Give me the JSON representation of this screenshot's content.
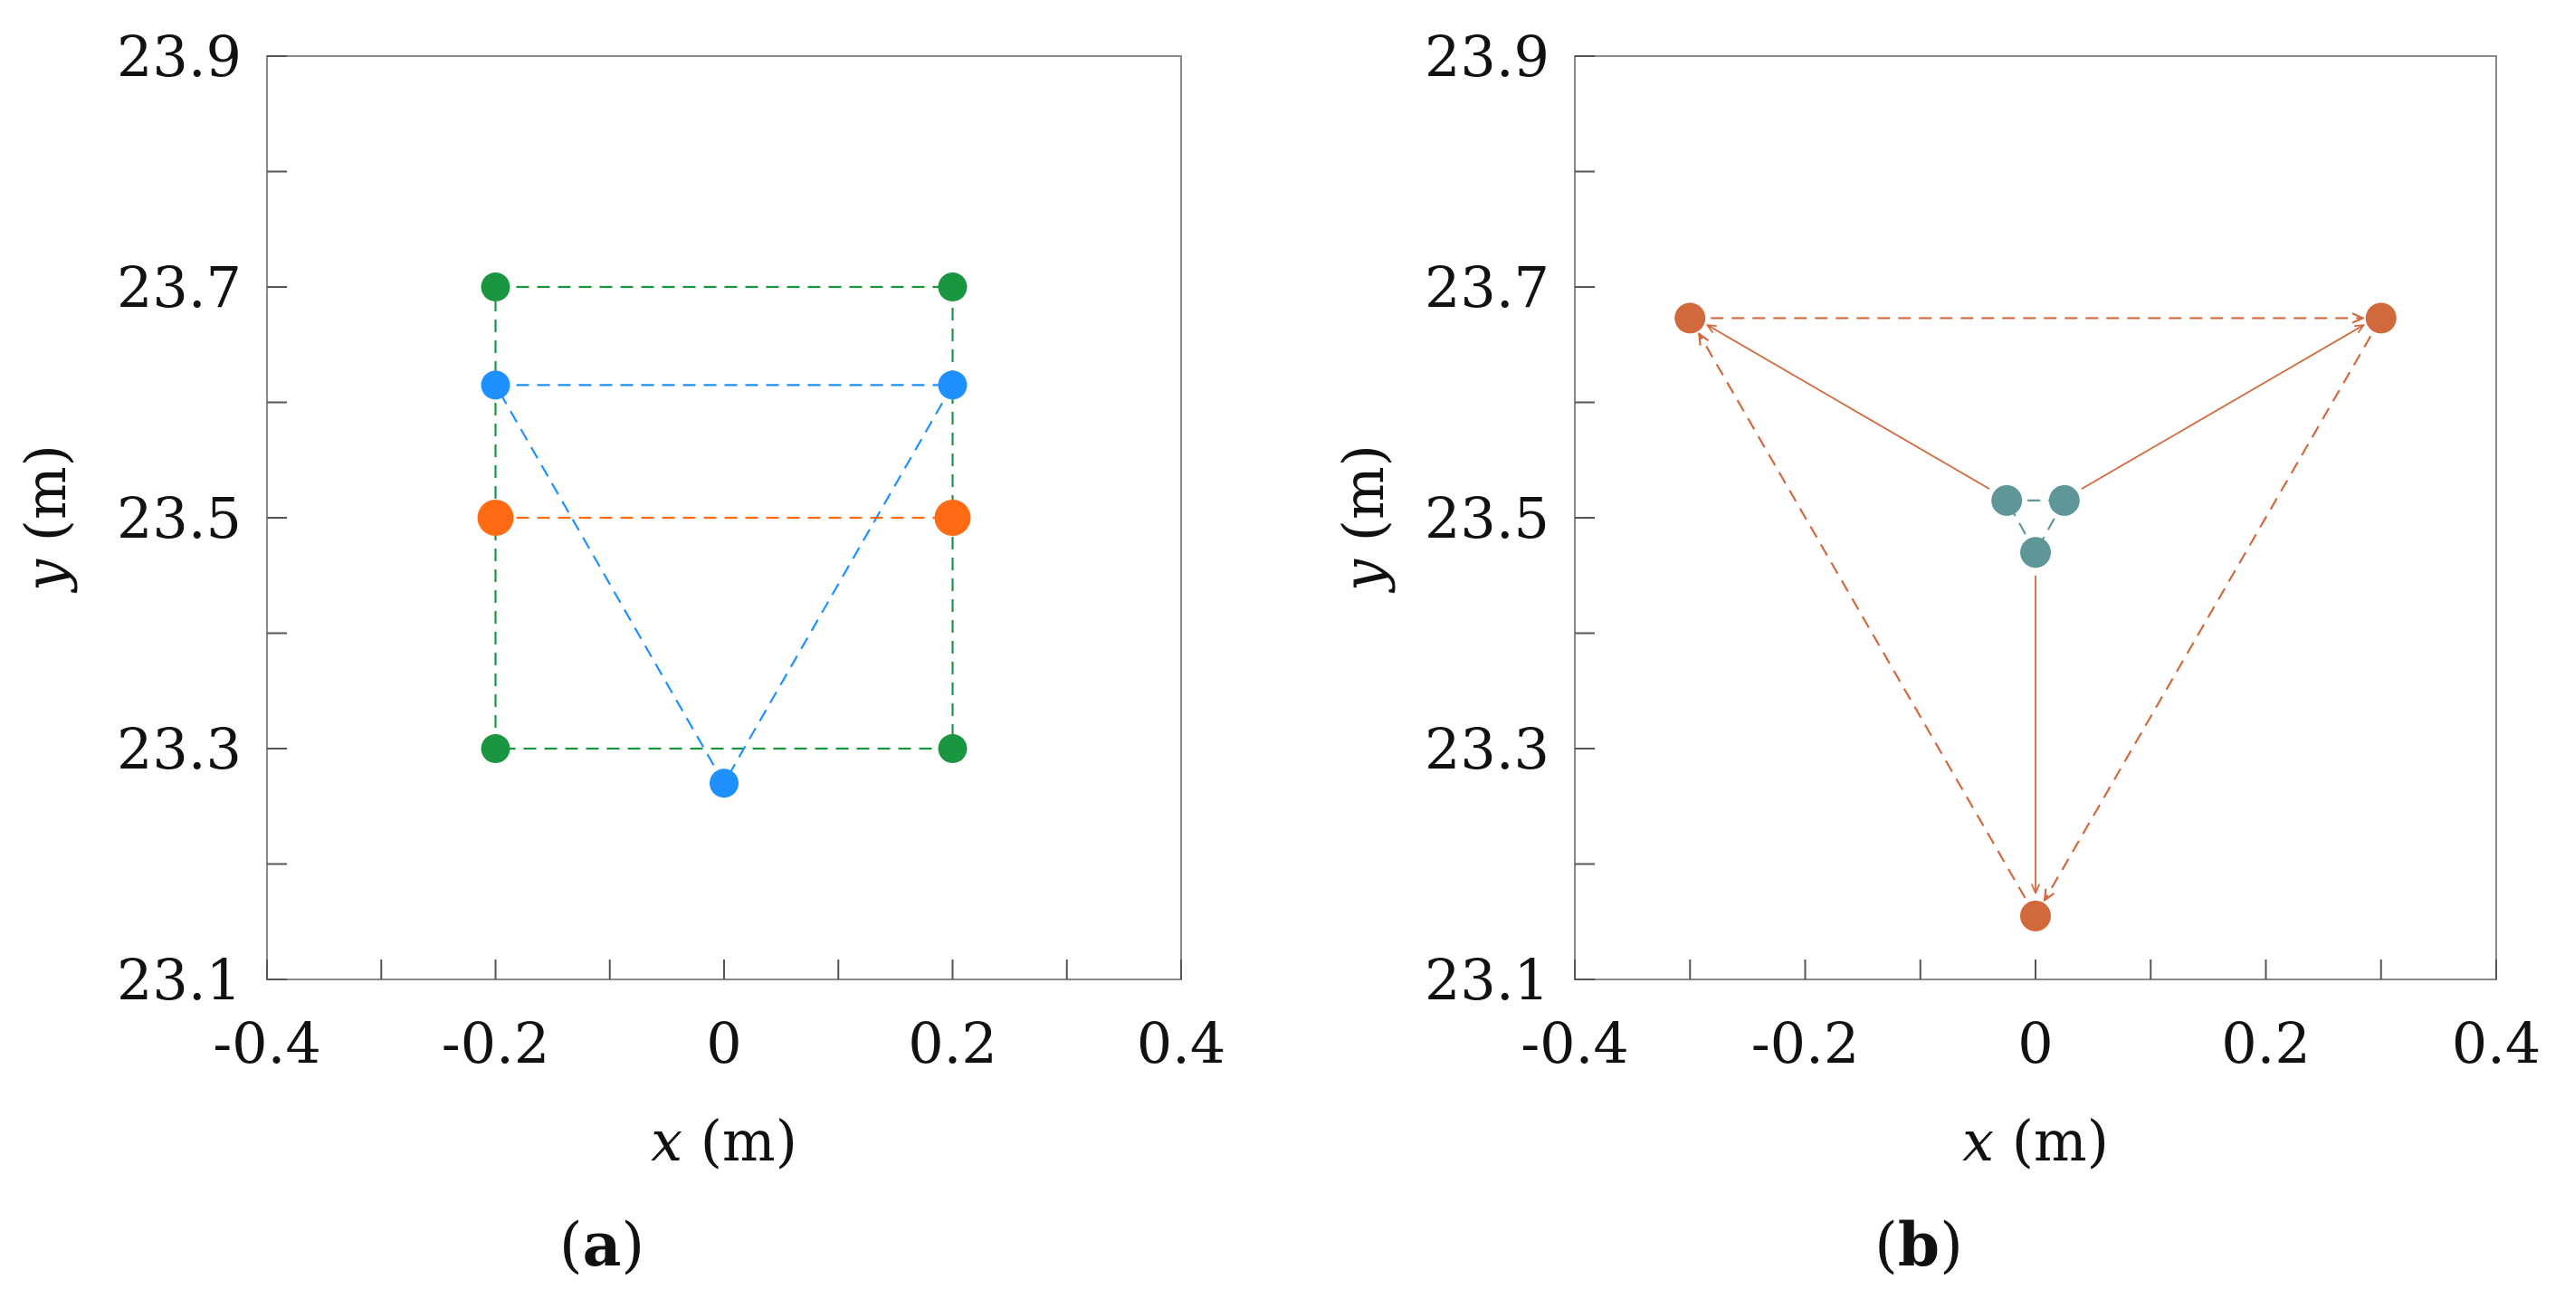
{
  "chart_data": [
    {
      "panel": "a",
      "panel_label": {
        "open": "(",
        "letter": "a",
        "close": ")"
      },
      "type": "scatter",
      "xlabel": {
        "var": "x",
        "unit": " (m)"
      },
      "ylabel": {
        "var": "y",
        "unit": " (m)"
      },
      "xlim": [
        -0.4,
        0.4
      ],
      "ylim": [
        23.1,
        23.9
      ],
      "xticks": [
        -0.4,
        -0.3,
        -0.2,
        -0.1,
        0,
        0.1,
        0.2,
        0.3,
        0.4
      ],
      "xtick_labels": [
        "-0.4",
        "",
        "-0.2",
        "",
        "0",
        "",
        "0.2",
        "",
        "0.4"
      ],
      "yticks": [
        23.1,
        23.2,
        23.3,
        23.4,
        23.5,
        23.6,
        23.7,
        23.8,
        23.9
      ],
      "ytick_labels": [
        "23.1",
        "",
        "23.3",
        "",
        "23.5",
        "",
        "23.7",
        "",
        "23.9"
      ],
      "series": [
        {
          "name": "green",
          "color": "#1a9641",
          "closed": true,
          "dashed": true,
          "marker_size": "small",
          "points": [
            [
              -0.2,
              23.7
            ],
            [
              0.2,
              23.7
            ],
            [
              0.2,
              23.3
            ],
            [
              -0.2,
              23.3
            ]
          ]
        },
        {
          "name": "blue",
          "color": "#1e90ff",
          "closed": true,
          "dashed": true,
          "marker_size": "small",
          "points": [
            [
              -0.2,
              23.615
            ],
            [
              0.2,
              23.615
            ],
            [
              0.0,
              23.27
            ]
          ]
        },
        {
          "name": "orange",
          "color": "#ff6a13",
          "closed": false,
          "dashed": true,
          "marker_size": "large",
          "points": [
            [
              -0.2,
              23.5
            ],
            [
              0.2,
              23.5
            ]
          ]
        }
      ],
      "arrows": []
    },
    {
      "panel": "b",
      "panel_label": {
        "open": "(",
        "letter": "b",
        "close": ")"
      },
      "type": "scatter",
      "xlabel": {
        "var": "x",
        "unit": " (m)"
      },
      "ylabel": {
        "var": "y",
        "unit": " (m)"
      },
      "xlim": [
        -0.4,
        0.4
      ],
      "ylim": [
        23.1,
        23.9
      ],
      "xticks": [
        -0.4,
        -0.3,
        -0.2,
        -0.1,
        0,
        0.1,
        0.2,
        0.3,
        0.4
      ],
      "xtick_labels": [
        "-0.4",
        "",
        "-0.2",
        "",
        "0",
        "",
        "0.2",
        "",
        "0.4"
      ],
      "yticks": [
        23.1,
        23.2,
        23.3,
        23.4,
        23.5,
        23.6,
        23.7,
        23.8,
        23.9
      ],
      "ytick_labels": [
        "23.1",
        "",
        "23.3",
        "",
        "23.5",
        "",
        "23.7",
        "",
        "23.9"
      ],
      "series": [
        {
          "name": "teal",
          "color": "#5f9697",
          "closed": true,
          "dashed": true,
          "marker_size": "medium",
          "points": [
            [
              -0.025,
              23.515
            ],
            [
              0.025,
              23.515
            ],
            [
              0.0,
              23.47
            ]
          ]
        },
        {
          "name": "rust",
          "color": "#d2693c",
          "closed": true,
          "dashed": true,
          "arrowheads": true,
          "marker_size": "medium",
          "points": [
            [
              -0.3,
              23.673
            ],
            [
              0.3,
              23.673
            ],
            [
              0.0,
              23.155
            ]
          ]
        }
      ],
      "arrows": [
        {
          "color": "#d2693c",
          "from": [
            -0.04,
            23.525
          ],
          "to": [
            -0.285,
            23.667
          ]
        },
        {
          "color": "#d2693c",
          "from": [
            0.04,
            23.525
          ],
          "to": [
            0.285,
            23.667
          ]
        },
        {
          "color": "#d2693c",
          "from": [
            0.0,
            23.45
          ],
          "to": [
            0.0,
            23.175
          ]
        }
      ]
    }
  ]
}
